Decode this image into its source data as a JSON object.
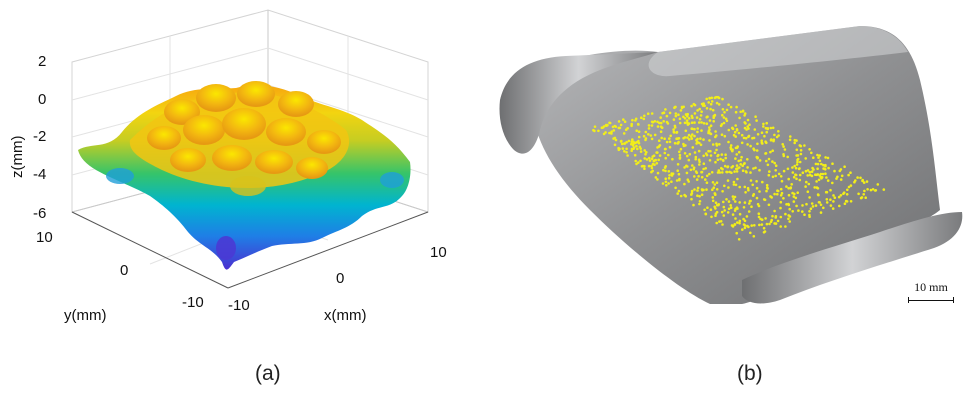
{
  "figure": {
    "panel_a": {
      "caption": "(a)",
      "z_axis_label": "z(mm)",
      "x_axis_label": "x(mm)",
      "y_axis_label": "y(mm)",
      "z_ticks": [
        "2",
        "0",
        "-2",
        "-4",
        "-6"
      ],
      "x_ticks": [
        "-10",
        "0",
        "10"
      ],
      "y_ticks": [
        "10",
        "0",
        "-10"
      ],
      "colors": {
        "low": "#4b2fd0",
        "mid_low": "#00a8d8",
        "mid": "#2bc36a",
        "mid_high": "#d8c21a",
        "high": "#f7e400",
        "peak": "#f4a10e"
      }
    },
    "panel_b": {
      "caption": "(b)",
      "scale_bar_label": "10 mm",
      "colors": {
        "surface": "#8f9092",
        "points": "#f2ee1a"
      }
    }
  }
}
